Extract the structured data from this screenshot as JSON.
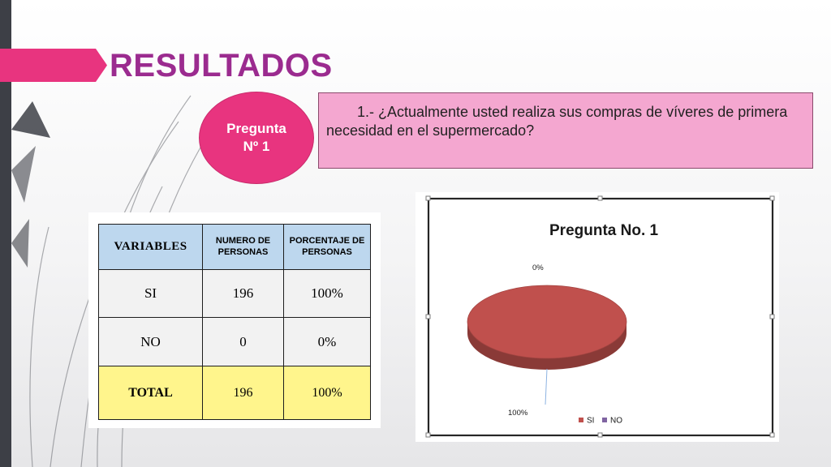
{
  "page": {
    "title": "RESULTADOS"
  },
  "question": {
    "bubble_line1": "Pregunta",
    "bubble_line2": "Nº 1",
    "text": "1.- ¿Actualmente usted realiza sus compras de víveres de primera necesidad en el supermercado?"
  },
  "table": {
    "headers": [
      "VARIABLES",
      "NUMERO DE PERSONAS",
      "PORCENTAJE DE PERSONAS"
    ],
    "rows": [
      [
        "SI",
        "196",
        "100%"
      ],
      [
        "NO",
        "0",
        "0%"
      ]
    ],
    "total": [
      "TOTAL",
      "196",
      "100%"
    ]
  },
  "chart_data": {
    "type": "pie",
    "title": "Pregunta No. 1",
    "categories": [
      "SI",
      "NO"
    ],
    "values": [
      100,
      0
    ],
    "data_labels": [
      "100%",
      "0%"
    ],
    "legend": [
      "SI",
      "NO"
    ],
    "legend_position": "bottom-right",
    "colors": [
      "#c0504d",
      "#8064a2"
    ]
  },
  "theme": {
    "accent": "#e8347f",
    "title_color": "#9b2b8f",
    "question_bg": "#f4a7d0"
  }
}
